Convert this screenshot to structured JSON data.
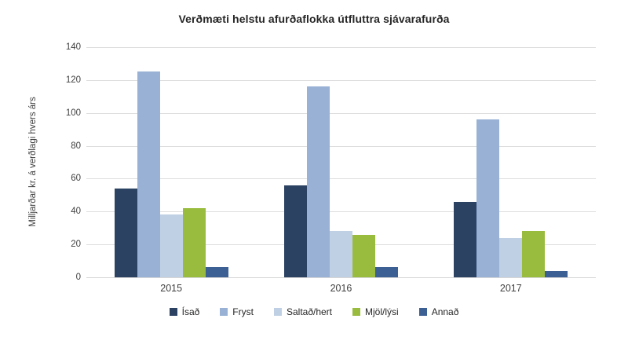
{
  "chart_data": {
    "type": "bar",
    "title": "Verðmæti helstu afurðaflokka útfluttra sjávarafurða",
    "ylabel": "Milljarðar kr. á verðlagi hvers árs",
    "xlabel": "",
    "categories": [
      "2015",
      "2016",
      "2017"
    ],
    "series": [
      {
        "name": "Ísað",
        "color": "#2b4263",
        "values": [
          54,
          56,
          46
        ]
      },
      {
        "name": "Fryst",
        "color": "#98b1d5",
        "values": [
          125,
          116,
          96
        ]
      },
      {
        "name": "Saltað/hert",
        "color": "#c0d0e4",
        "values": [
          38,
          28,
          24
        ]
      },
      {
        "name": "Mjöl/lýsi",
        "color": "#9abc3e",
        "values": [
          42,
          26,
          28
        ]
      },
      {
        "name": "Annað",
        "color": "#3c5f94",
        "values": [
          6,
          6,
          4
        ]
      }
    ],
    "ylim": [
      0,
      140
    ],
    "yticks": [
      0,
      20,
      40,
      60,
      80,
      100,
      120,
      140
    ],
    "grid": true,
    "legend_position": "bottom",
    "colors": {
      "grid": "#dedede",
      "axis_text": "#3f3f3f",
      "title_text": "#262626"
    }
  }
}
